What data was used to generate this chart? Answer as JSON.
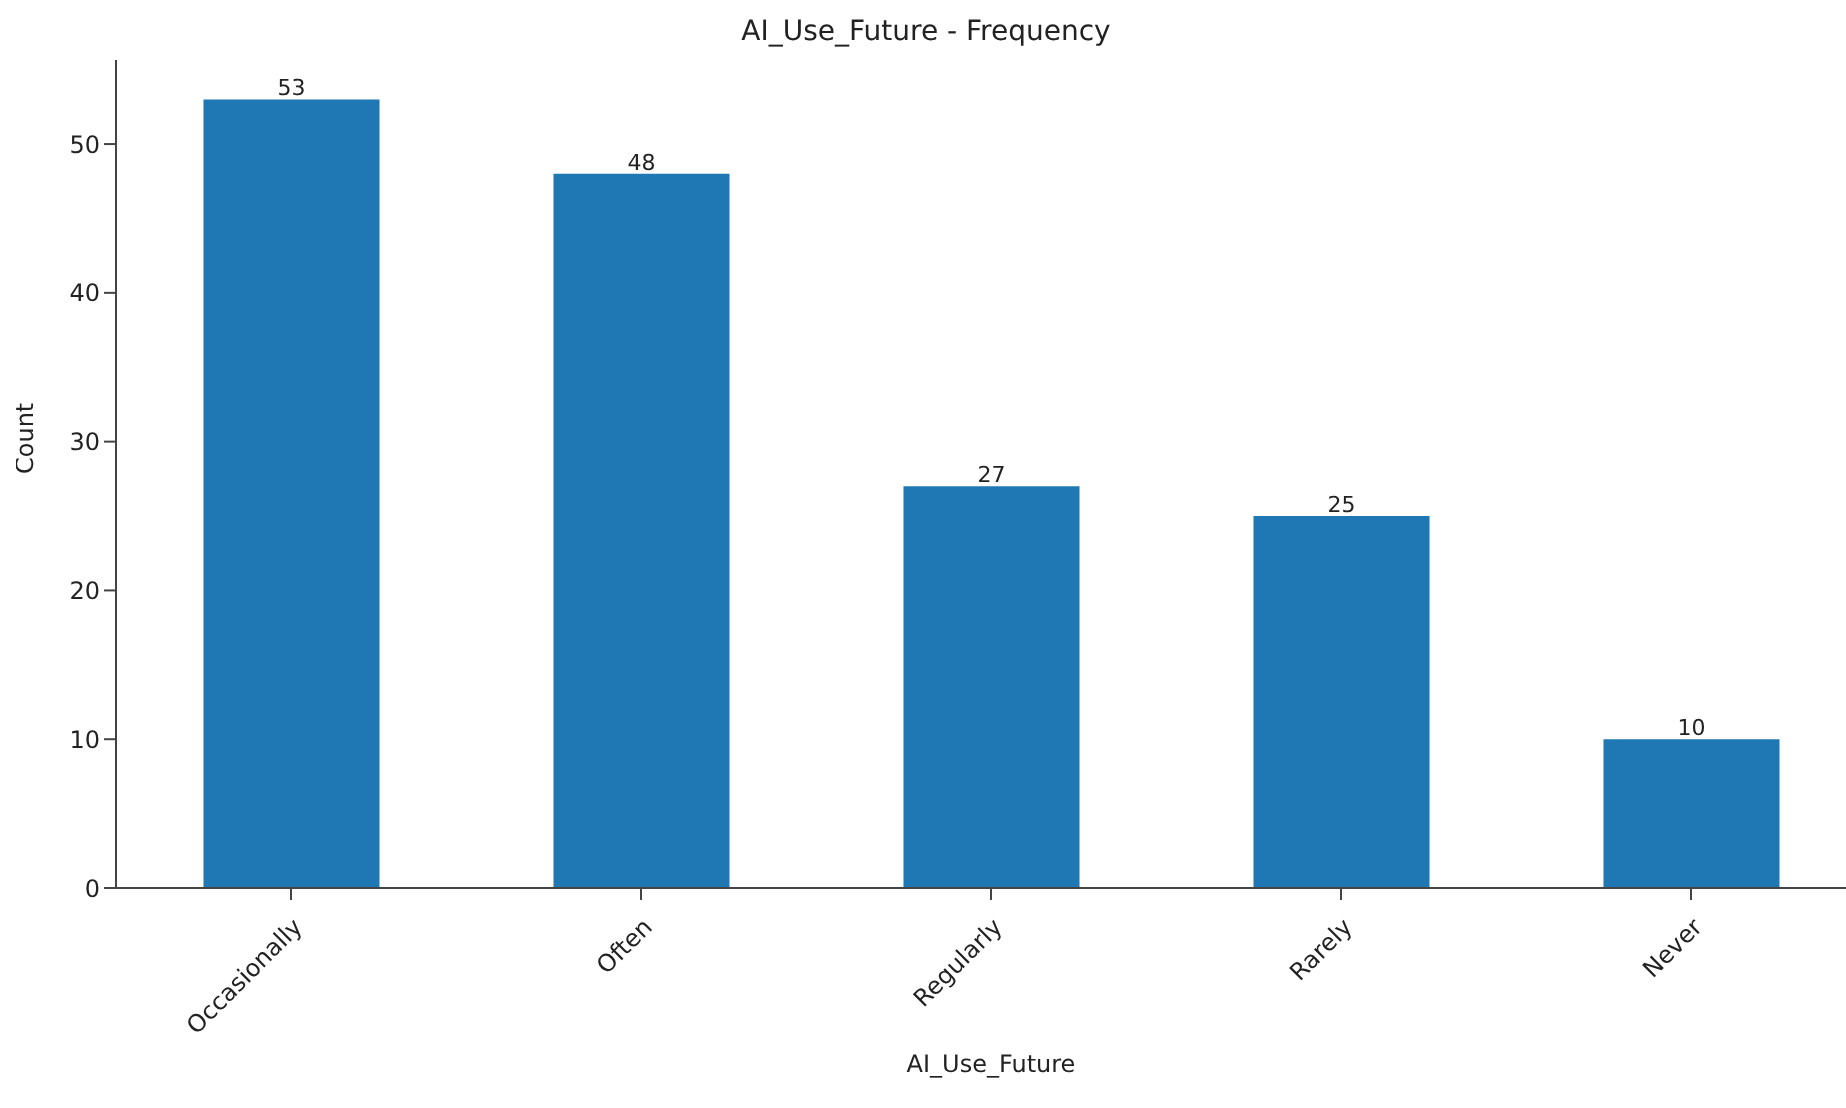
{
  "chart_data": {
    "type": "bar",
    "title": "AI_Use_Future - Frequency",
    "xlabel": "AI_Use_Future",
    "ylabel": "Count",
    "categories": [
      "Occasionally",
      "Often",
      "Regularly",
      "Rarely",
      "Never"
    ],
    "values": [
      53,
      48,
      27,
      25,
      10
    ],
    "color": "#1f77b4",
    "ylim": [
      0,
      55.65
    ],
    "yticks": [
      0,
      10,
      20,
      30,
      40,
      50
    ],
    "data_labels": true
  }
}
